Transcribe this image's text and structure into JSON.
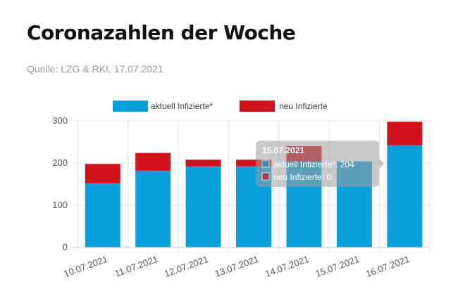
{
  "header": {
    "title": "Coronazahlen der Woche",
    "source": "Quelle: LZG & RKI, 17.07.2021"
  },
  "colors": {
    "active": "#0aa0dc",
    "new": "#d0121b"
  },
  "chart_data": {
    "type": "bar",
    "stacked": true,
    "categories": [
      "10.07.2021",
      "11.07.2021",
      "12.07.2021",
      "13.07.2021",
      "14.07.2021",
      "15.07.2021",
      "16.07.2021"
    ],
    "series": [
      {
        "name": "aktuell Infizierte*",
        "values": [
          152,
          182,
          192,
          192,
          204,
          204,
          242
        ]
      },
      {
        "name": "neu Infizierte",
        "values": [
          46,
          42,
          16,
          16,
          36,
          0,
          56
        ]
      }
    ],
    "ylim": [
      0,
      300
    ],
    "yticks": [
      0,
      100,
      200,
      300
    ],
    "grid": true,
    "legend_position": "top",
    "tooltip": {
      "title": "15.07.2021",
      "lines": [
        "aktuell Infizierte*: 204",
        "neu Infizierte: 0"
      ]
    }
  }
}
